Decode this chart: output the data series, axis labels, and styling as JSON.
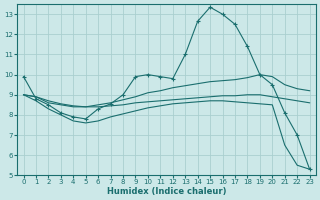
{
  "xlabel": "Humidex (Indice chaleur)",
  "background_color": "#cce8e8",
  "grid_color": "#aacfcf",
  "line_color": "#1a6e6e",
  "xlim": [
    -0.5,
    23.5
  ],
  "ylim": [
    5,
    13.5
  ],
  "yticks": [
    5,
    6,
    7,
    8,
    9,
    10,
    11,
    12,
    13
  ],
  "xticks": [
    0,
    1,
    2,
    3,
    4,
    5,
    6,
    7,
    8,
    9,
    10,
    11,
    12,
    13,
    14,
    15,
    16,
    17,
    18,
    19,
    20,
    21,
    22,
    23
  ],
  "line1_x": [
    0,
    1,
    2,
    3,
    4,
    5,
    6,
    7,
    8,
    9,
    10,
    11,
    12,
    13,
    14,
    15,
    16,
    17,
    18,
    19,
    20,
    21,
    22,
    23
  ],
  "line1_y": [
    9.9,
    8.8,
    8.5,
    8.1,
    7.9,
    7.8,
    8.3,
    8.55,
    9.0,
    9.9,
    10.0,
    9.9,
    9.8,
    11.0,
    12.65,
    13.35,
    13.0,
    12.5,
    11.4,
    10.0,
    9.5,
    8.1,
    7.0,
    5.3
  ],
  "line2_x": [
    0,
    1,
    2,
    3,
    4,
    5,
    6,
    7,
    8,
    9,
    10,
    11,
    12,
    13,
    14,
    15,
    16,
    17,
    18,
    19,
    20,
    21,
    22,
    23
  ],
  "line2_y": [
    9.0,
    8.9,
    8.6,
    8.5,
    8.4,
    8.4,
    8.5,
    8.6,
    8.75,
    8.9,
    9.1,
    9.2,
    9.35,
    9.45,
    9.55,
    9.65,
    9.7,
    9.75,
    9.85,
    10.0,
    9.9,
    9.5,
    9.3,
    9.2
  ],
  "line3_x": [
    0,
    1,
    2,
    3,
    4,
    5,
    6,
    7,
    8,
    9,
    10,
    11,
    12,
    13,
    14,
    15,
    16,
    17,
    18,
    19,
    20,
    21,
    22,
    23
  ],
  "line3_y": [
    9.0,
    8.9,
    8.7,
    8.55,
    8.45,
    8.4,
    8.4,
    8.45,
    8.5,
    8.6,
    8.65,
    8.7,
    8.75,
    8.8,
    8.85,
    8.9,
    8.95,
    8.95,
    9.0,
    9.0,
    8.9,
    8.8,
    8.7,
    8.6
  ],
  "line4_x": [
    0,
    1,
    2,
    3,
    4,
    5,
    6,
    7,
    8,
    9,
    10,
    11,
    12,
    13,
    14,
    15,
    16,
    17,
    18,
    19,
    20,
    21,
    22,
    23
  ],
  "line4_y": [
    9.0,
    8.7,
    8.3,
    8.0,
    7.7,
    7.6,
    7.7,
    7.9,
    8.05,
    8.2,
    8.35,
    8.45,
    8.55,
    8.6,
    8.65,
    8.7,
    8.7,
    8.65,
    8.6,
    8.55,
    8.5,
    6.5,
    5.5,
    5.3
  ]
}
